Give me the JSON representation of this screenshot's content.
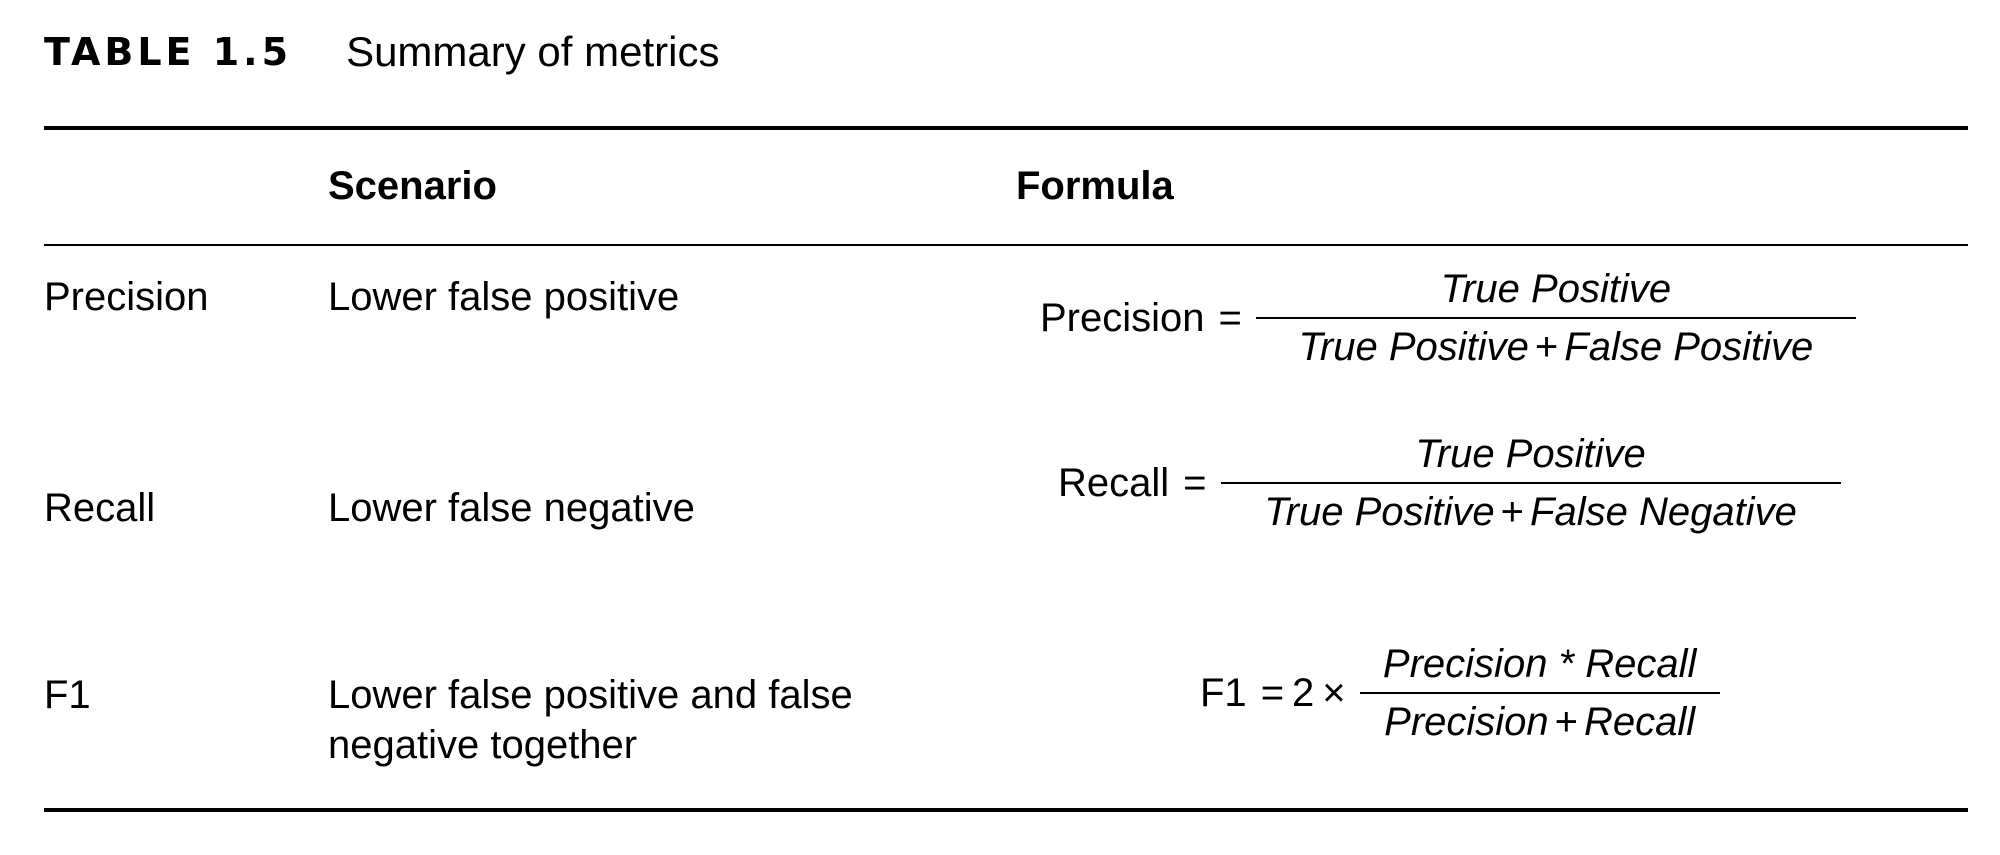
{
  "caption": {
    "label": "TABLE 1.5",
    "title": "Summary of metrics"
  },
  "columns": [
    "",
    "Scenario",
    "Formula"
  ],
  "rows": [
    {
      "metric": "Precision",
      "scenario": [
        "Lower false positive"
      ],
      "formula": {
        "lhs": "Precision",
        "equals": "=",
        "numerator": "True Positive",
        "denominator_terms": [
          "True Positive",
          "False Positive"
        ],
        "operator": "+"
      }
    },
    {
      "metric": "Recall",
      "scenario": [
        "Lower false negative"
      ],
      "formula": {
        "lhs": "Recall",
        "equals": "=",
        "numerator": "True Positive",
        "denominator_terms": [
          "True Positive",
          "False Negative"
        ],
        "operator": "+"
      }
    },
    {
      "metric": "F1",
      "scenario": [
        "Lower false positive and false",
        "negative together"
      ],
      "formula": {
        "lhs": "F1",
        "equals": "=",
        "coefficient": "2",
        "times": "×",
        "numerator": "Precision * Recall",
        "denominator_terms": [
          "Precision",
          "Recall"
        ],
        "operator": "+"
      }
    }
  ]
}
